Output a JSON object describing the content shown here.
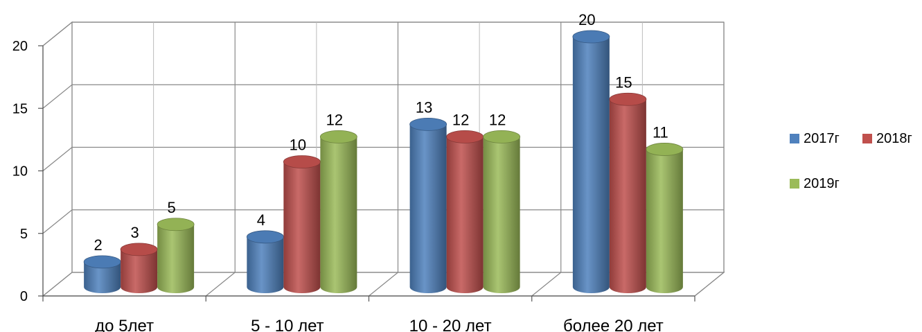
{
  "chart_data": {
    "type": "bar",
    "categories": [
      "до 5лет",
      "5 - 10 лет",
      "10 - 20 лет",
      "более 20 лет"
    ],
    "series": [
      {
        "name": "2017г",
        "values": [
          2,
          4,
          13,
          20
        ],
        "color": "#4F81BD"
      },
      {
        "name": "2018г",
        "values": [
          3,
          10,
          12,
          15
        ],
        "color": "#C0504D"
      },
      {
        "name": "2019г",
        "values": [
          5,
          12,
          12,
          11
        ],
        "color": "#9BBB59"
      }
    ],
    "y_ticks": [
      "0",
      "5",
      "10",
      "15",
      "20"
    ],
    "ylim": [
      0,
      20
    ],
    "grid": true,
    "legend_position": "right",
    "three_d": true
  }
}
